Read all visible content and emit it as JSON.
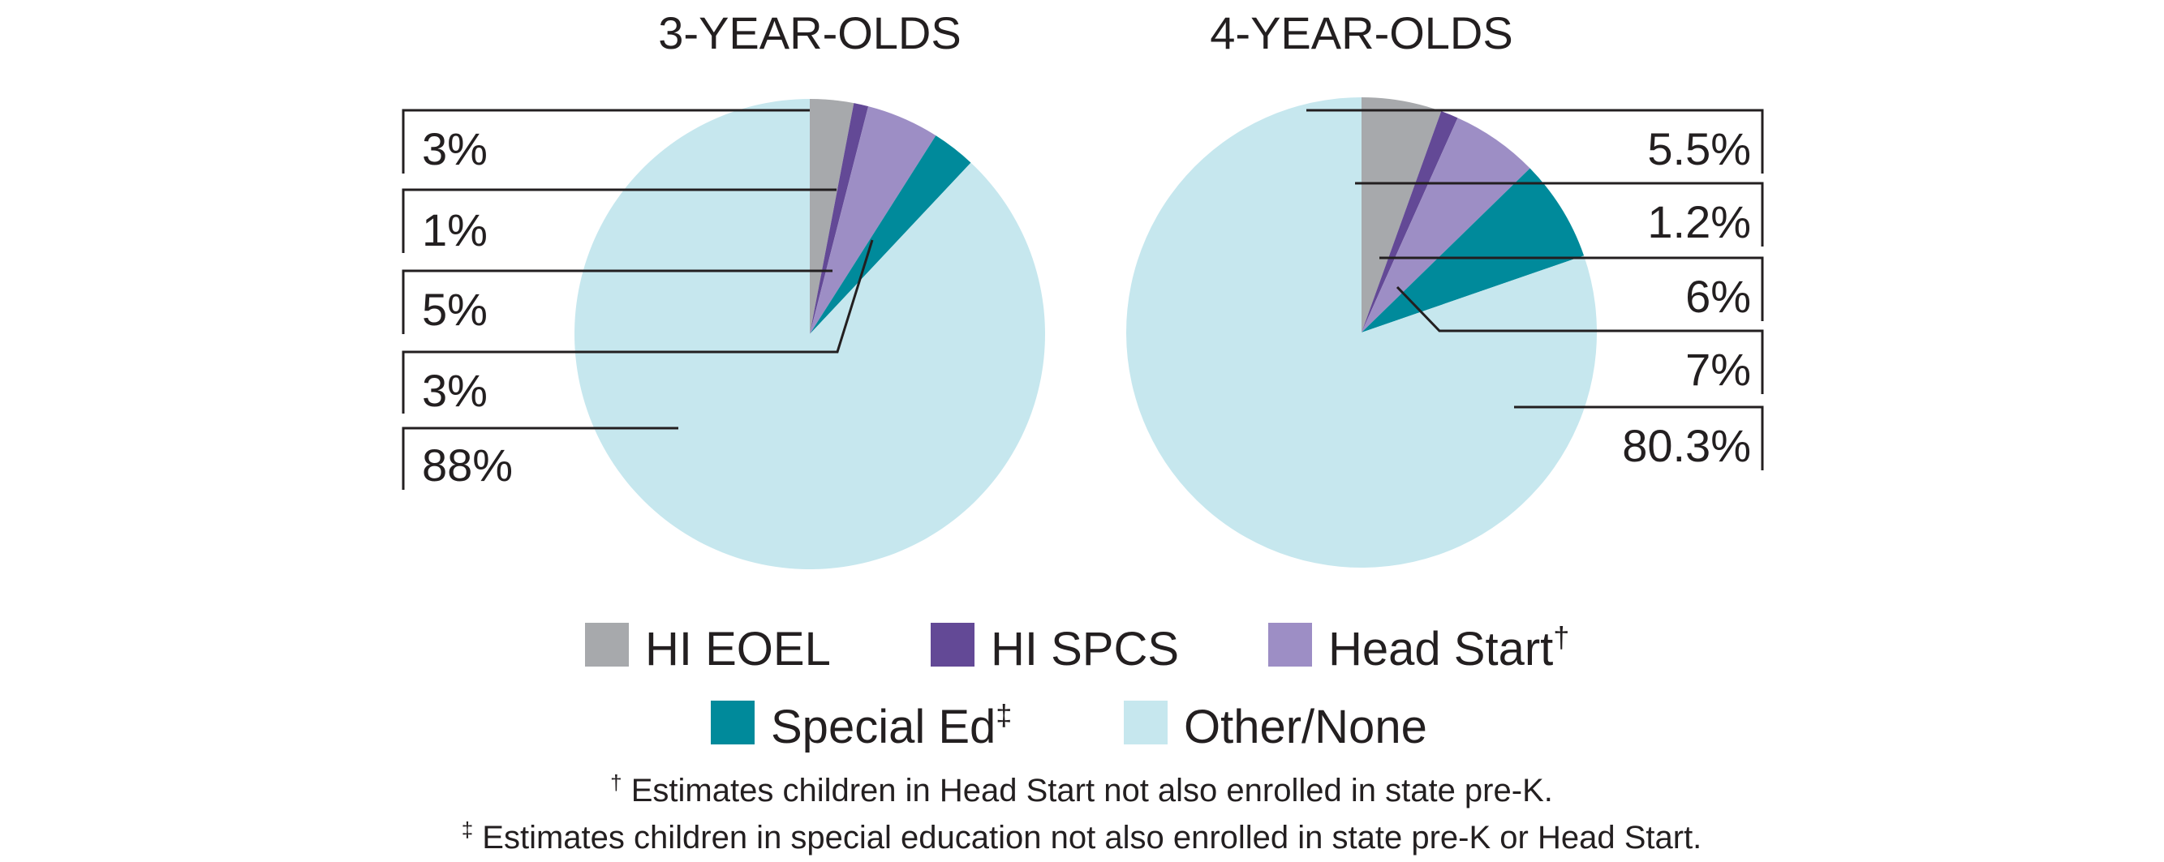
{
  "chart_data": [
    {
      "type": "pie",
      "title": "3-YEAR-OLDS",
      "slices": [
        {
          "key": "eoel",
          "label": "HI EOEL",
          "value": 3,
          "display": "3%"
        },
        {
          "key": "spcs",
          "label": "HI SPCS",
          "value": 1,
          "display": "1%"
        },
        {
          "key": "hs",
          "label": "Head Start",
          "value": 5,
          "display": "5%"
        },
        {
          "key": "sped",
          "label": "Special Ed",
          "value": 3,
          "display": "3%"
        },
        {
          "key": "other",
          "label": "Other/None",
          "value": 88,
          "display": "88%"
        }
      ]
    },
    {
      "type": "pie",
      "title": "4-YEAR-OLDS",
      "slices": [
        {
          "key": "eoel",
          "label": "HI EOEL",
          "value": 5.5,
          "display": "5.5%"
        },
        {
          "key": "spcs",
          "label": "HI SPCS",
          "value": 1.2,
          "display": "1.2%"
        },
        {
          "key": "hs",
          "label": "Head Start",
          "value": 6,
          "display": "6%"
        },
        {
          "key": "sped",
          "label": "Special Ed",
          "value": 7,
          "display": "7%"
        },
        {
          "key": "other",
          "label": "Other/None",
          "value": 80.3,
          "display": "80.3%"
        }
      ]
    }
  ],
  "legend": [
    {
      "key": "eoel",
      "label": "HI EOEL",
      "mark": ""
    },
    {
      "key": "spcs",
      "label": "HI SPCS",
      "mark": ""
    },
    {
      "key": "hs",
      "label": "Head Start",
      "mark": "†"
    },
    {
      "key": "sped",
      "label": "Special Ed",
      "mark": "‡"
    },
    {
      "key": "other",
      "label": "Other/None",
      "mark": ""
    }
  ],
  "colors": {
    "eoel": "#a7a9ac",
    "spcs": "#634996",
    "hs": "#9d8ec5",
    "sped": "#008a9b",
    "other": "#c6e7ee"
  },
  "footnotes": [
    {
      "mark": "†",
      "text": " Estimates children in Head Start not also enrolled in state pre-K."
    },
    {
      "mark": "‡",
      "text": " Estimates children in special education not also enrolled in state pre-K or Head Start."
    }
  ]
}
